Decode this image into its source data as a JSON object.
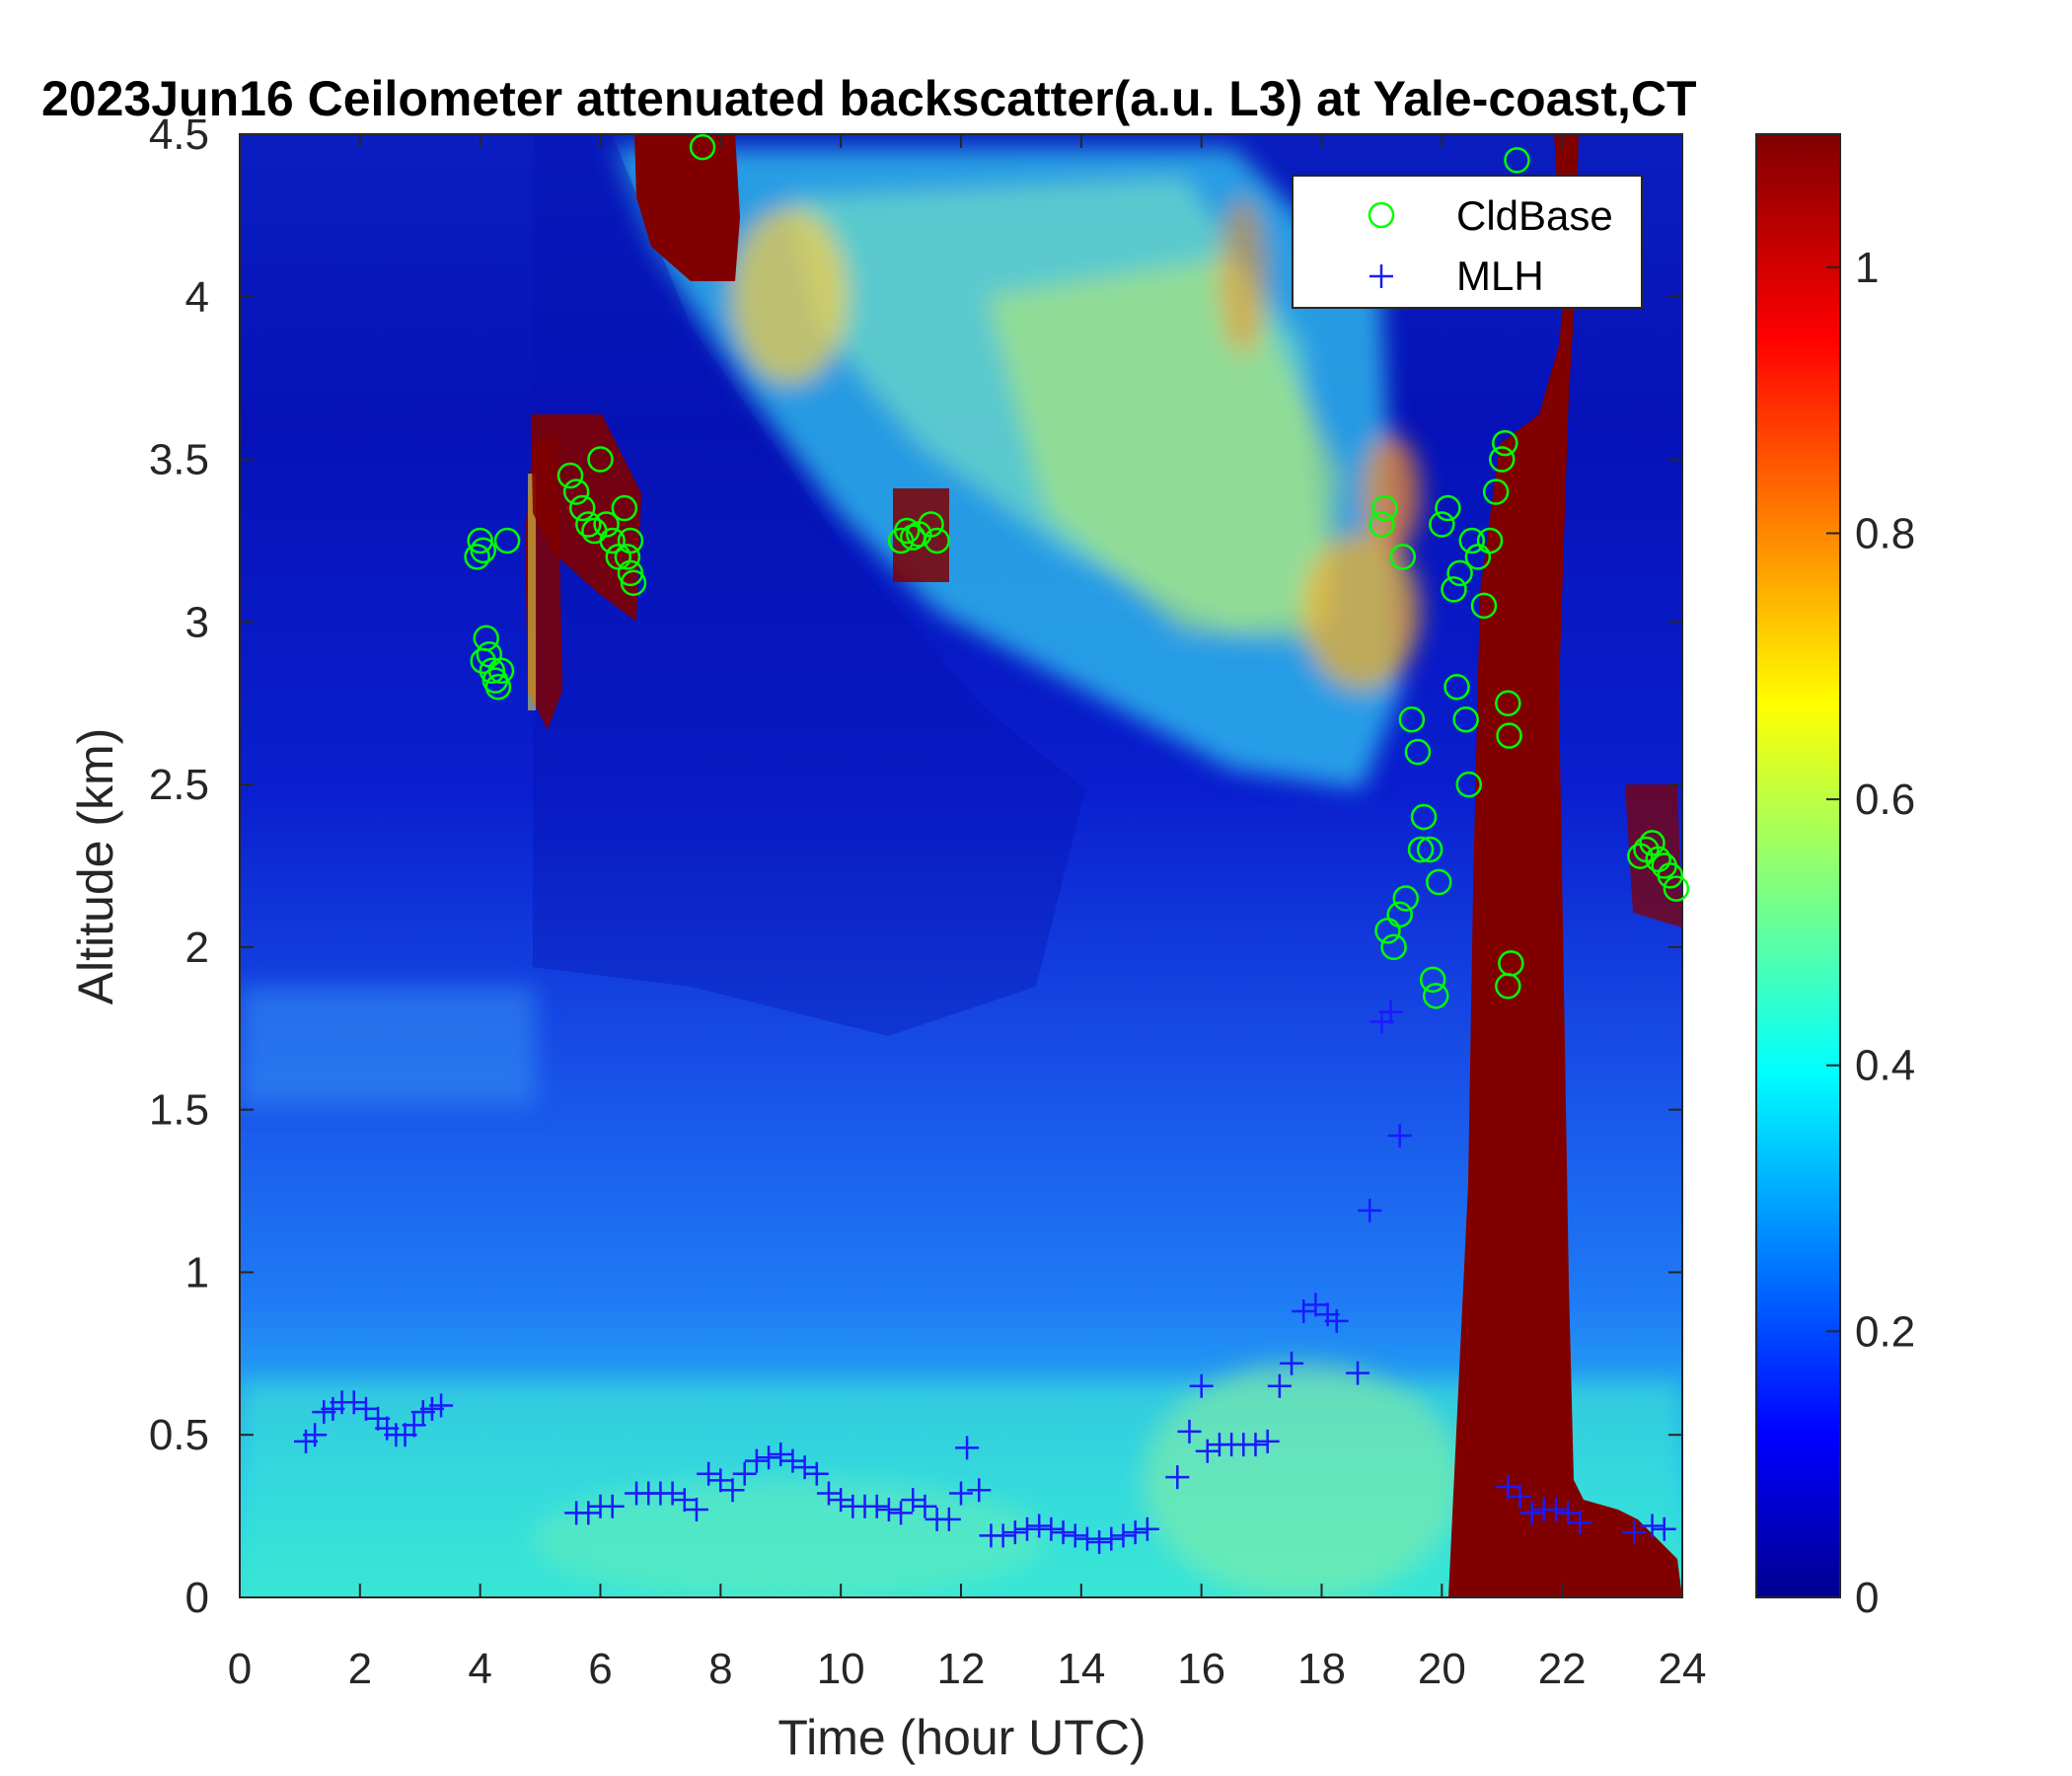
{
  "chart_data": {
    "type": "heatmap",
    "title": "2023Jun16 Ceilometer attenuated backscatter(a.u. L3) at Yale-coast,CT",
    "xlabel": "Time (hour UTC)",
    "ylabel": "Altitude (km)",
    "xlim": [
      0,
      24
    ],
    "ylim": [
      0,
      4.5
    ],
    "xticks": [
      "0",
      "2",
      "4",
      "6",
      "8",
      "10",
      "12",
      "14",
      "16",
      "18",
      "20",
      "22",
      "24"
    ],
    "yticks": [
      "0",
      "0.5",
      "1",
      "1.5",
      "2",
      "2.5",
      "3",
      "3.5",
      "4",
      "4.5"
    ],
    "colorbar": {
      "colormap": "jet",
      "range": [
        0,
        1.1
      ],
      "ticks": [
        "0",
        "0.2",
        "0.4",
        "0.6",
        "0.8",
        "1"
      ]
    },
    "legend": {
      "placement": "top-right",
      "entries": [
        {
          "name": "CldBase",
          "marker": "circle",
          "color": "#00ff00"
        },
        {
          "name": "MLH",
          "marker": "plus",
          "color": "#1a1aff"
        }
      ]
    },
    "series": [
      {
        "name": "CldBase",
        "points": [
          [
            4.0,
            3.25
          ],
          [
            4.05,
            3.22
          ],
          [
            3.95,
            3.2
          ],
          [
            4.1,
            2.95
          ],
          [
            4.05,
            2.88
          ],
          [
            4.2,
            2.85
          ],
          [
            4.15,
            2.9
          ],
          [
            4.3,
            2.8
          ],
          [
            4.35,
            2.85
          ],
          [
            4.25,
            2.82
          ],
          [
            4.45,
            3.25
          ],
          [
            5.5,
            3.45
          ],
          [
            5.6,
            3.4
          ],
          [
            5.7,
            3.35
          ],
          [
            5.8,
            3.3
          ],
          [
            5.9,
            3.28
          ],
          [
            6.0,
            3.5
          ],
          [
            6.1,
            3.3
          ],
          [
            6.2,
            3.25
          ],
          [
            6.3,
            3.2
          ],
          [
            6.4,
            3.35
          ],
          [
            6.45,
            3.2
          ],
          [
            6.5,
            3.15
          ],
          [
            6.55,
            3.12
          ],
          [
            6.5,
            3.25
          ],
          [
            7.7,
            4.46
          ],
          [
            11.0,
            3.25
          ],
          [
            11.1,
            3.28
          ],
          [
            11.2,
            3.26
          ],
          [
            11.3,
            3.27
          ],
          [
            11.5,
            3.3
          ],
          [
            11.6,
            3.25
          ],
          [
            19.0,
            3.3
          ],
          [
            19.05,
            3.35
          ],
          [
            19.1,
            2.05
          ],
          [
            19.2,
            2.0
          ],
          [
            19.3,
            2.1
          ],
          [
            19.35,
            3.2
          ],
          [
            19.4,
            2.15
          ],
          [
            19.5,
            2.7
          ],
          [
            19.6,
            2.6
          ],
          [
            19.65,
            2.3
          ],
          [
            19.7,
            2.4
          ],
          [
            19.8,
            2.3
          ],
          [
            19.85,
            1.9
          ],
          [
            19.9,
            1.85
          ],
          [
            19.95,
            2.2
          ],
          [
            20.0,
            3.3
          ],
          [
            20.1,
            3.35
          ],
          [
            20.2,
            3.1
          ],
          [
            20.25,
            2.8
          ],
          [
            20.3,
            3.15
          ],
          [
            20.4,
            2.7
          ],
          [
            20.45,
            2.5
          ],
          [
            20.5,
            3.25
          ],
          [
            20.6,
            3.2
          ],
          [
            20.7,
            3.05
          ],
          [
            20.8,
            3.25
          ],
          [
            20.9,
            3.4
          ],
          [
            21.0,
            3.5
          ],
          [
            21.05,
            3.55
          ],
          [
            21.1,
            2.75
          ],
          [
            21.12,
            2.65
          ],
          [
            21.15,
            1.95
          ],
          [
            21.1,
            1.88
          ],
          [
            21.25,
            4.42
          ],
          [
            23.3,
            2.28
          ],
          [
            23.4,
            2.3
          ],
          [
            23.5,
            2.32
          ],
          [
            23.6,
            2.27
          ],
          [
            23.7,
            2.25
          ],
          [
            23.8,
            2.22
          ],
          [
            23.9,
            2.18
          ]
        ]
      },
      {
        "name": "MLH",
        "points": [
          [
            1.1,
            0.48
          ],
          [
            1.25,
            0.5
          ],
          [
            1.4,
            0.57
          ],
          [
            1.55,
            0.58
          ],
          [
            1.7,
            0.6
          ],
          [
            1.9,
            0.6
          ],
          [
            2.1,
            0.58
          ],
          [
            2.3,
            0.55
          ],
          [
            2.45,
            0.52
          ],
          [
            2.6,
            0.5
          ],
          [
            2.75,
            0.5
          ],
          [
            2.9,
            0.53
          ],
          [
            3.05,
            0.57
          ],
          [
            3.2,
            0.58
          ],
          [
            3.35,
            0.59
          ],
          [
            5.6,
            0.26
          ],
          [
            5.8,
            0.26
          ],
          [
            6.0,
            0.28
          ],
          [
            6.2,
            0.28
          ],
          [
            6.6,
            0.32
          ],
          [
            6.8,
            0.32
          ],
          [
            7.0,
            0.32
          ],
          [
            7.2,
            0.32
          ],
          [
            7.4,
            0.3
          ],
          [
            7.6,
            0.27
          ],
          [
            7.8,
            0.38
          ],
          [
            8.0,
            0.36
          ],
          [
            8.2,
            0.33
          ],
          [
            8.4,
            0.38
          ],
          [
            8.6,
            0.42
          ],
          [
            8.8,
            0.43
          ],
          [
            9.0,
            0.44
          ],
          [
            9.2,
            0.42
          ],
          [
            9.4,
            0.4
          ],
          [
            9.6,
            0.38
          ],
          [
            9.8,
            0.32
          ],
          [
            10.0,
            0.3
          ],
          [
            10.2,
            0.28
          ],
          [
            10.4,
            0.28
          ],
          [
            10.6,
            0.28
          ],
          [
            10.8,
            0.27
          ],
          [
            11.0,
            0.26
          ],
          [
            11.2,
            0.3
          ],
          [
            11.4,
            0.28
          ],
          [
            11.6,
            0.24
          ],
          [
            11.8,
            0.24
          ],
          [
            12.0,
            0.32
          ],
          [
            12.1,
            0.46
          ],
          [
            12.3,
            0.33
          ],
          [
            12.5,
            0.19
          ],
          [
            12.7,
            0.19
          ],
          [
            12.9,
            0.2
          ],
          [
            13.1,
            0.21
          ],
          [
            13.3,
            0.22
          ],
          [
            13.5,
            0.21
          ],
          [
            13.7,
            0.2
          ],
          [
            13.9,
            0.19
          ],
          [
            14.1,
            0.18
          ],
          [
            14.3,
            0.17
          ],
          [
            14.5,
            0.18
          ],
          [
            14.7,
            0.19
          ],
          [
            14.9,
            0.2
          ],
          [
            15.1,
            0.21
          ],
          [
            15.6,
            0.37
          ],
          [
            15.8,
            0.51
          ],
          [
            16.0,
            0.65
          ],
          [
            16.1,
            0.45
          ],
          [
            16.3,
            0.47
          ],
          [
            16.5,
            0.47
          ],
          [
            16.7,
            0.47
          ],
          [
            16.9,
            0.47
          ],
          [
            17.1,
            0.48
          ],
          [
            17.3,
            0.65
          ],
          [
            17.5,
            0.72
          ],
          [
            17.7,
            0.88
          ],
          [
            17.9,
            0.9
          ],
          [
            18.1,
            0.87
          ],
          [
            18.25,
            0.85
          ],
          [
            18.6,
            0.69
          ],
          [
            18.8,
            1.19
          ],
          [
            19.0,
            1.77
          ],
          [
            19.15,
            1.8
          ],
          [
            19.3,
            1.42
          ],
          [
            21.1,
            0.34
          ],
          [
            21.3,
            0.31
          ],
          [
            21.5,
            0.26
          ],
          [
            21.7,
            0.27
          ],
          [
            21.9,
            0.27
          ],
          [
            22.1,
            0.26
          ],
          [
            22.3,
            0.23
          ],
          [
            23.2,
            0.2
          ],
          [
            23.5,
            0.22
          ],
          [
            23.7,
            0.21
          ]
        ]
      }
    ]
  }
}
